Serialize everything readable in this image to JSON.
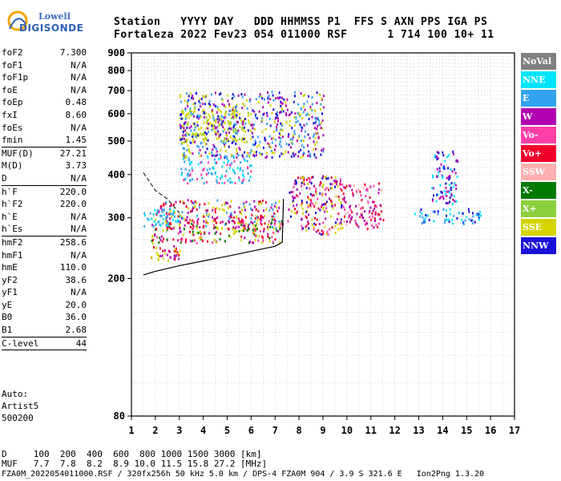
{
  "logo": {
    "line1": "Lowell",
    "line2": "DIGISONDE"
  },
  "header": {
    "line1": "Station   YYYY DAY   DDD HHMMSS P1  FFS S AXN PPS IGA PS",
    "line2": "Fortaleza 2022 Fev23 054 011000 RSF      1 714 100 10+ 11"
  },
  "params": [
    {
      "name": "foF2",
      "value": "7.300"
    },
    {
      "name": "foF1",
      "value": "N/A"
    },
    {
      "name": "foF1p",
      "value": "N/A"
    },
    {
      "name": "foE",
      "value": "N/A"
    },
    {
      "name": "foEp",
      "value": "0.48"
    },
    {
      "name": "fxI",
      "value": "8.60"
    },
    {
      "name": "foEs",
      "value": "N/A"
    },
    {
      "name": "fmin",
      "value": "1.45",
      "sep": true
    },
    {
      "name": "MUF(D)",
      "value": "27.21"
    },
    {
      "name": "M(D)",
      "value": "3.73"
    },
    {
      "name": "D",
      "value": "N/A",
      "sep": true
    },
    {
      "name": "h`F",
      "value": "220.0"
    },
    {
      "name": "h`F2",
      "value": "220.0"
    },
    {
      "name": "h`E",
      "value": "N/A"
    },
    {
      "name": "h`Es",
      "value": "N/A",
      "sep": true
    },
    {
      "name": "hmF2",
      "value": "258.6"
    },
    {
      "name": "hmF1",
      "value": "N/A"
    },
    {
      "name": "hmE",
      "value": "110.0"
    },
    {
      "name": "yF2",
      "value": "38.6"
    },
    {
      "name": "yF1",
      "value": "N/A"
    },
    {
      "name": "yE",
      "value": "20.0"
    },
    {
      "name": "B0",
      "value": "36.0"
    },
    {
      "name": "B1",
      "value": "2.68",
      "sep": true
    },
    {
      "name": "C-level",
      "value": "44",
      "sep": true
    }
  ],
  "auto": {
    "line1": "Auto:",
    "line2": "Artist5",
    "line3": "500200"
  },
  "legend": [
    {
      "label": "NoVal",
      "color": "#808080"
    },
    {
      "label": "NNE",
      "color": "#00e5ff"
    },
    {
      "label": "E",
      "color": "#33a3f0"
    },
    {
      "label": "W",
      "color": "#b000b0"
    },
    {
      "label": "Vo-",
      "color": "#ff3fa8"
    },
    {
      "label": "Vo+",
      "color": "#f0002c"
    },
    {
      "label": "SSW",
      "color": "#ffb0b0"
    },
    {
      "label": "X-",
      "color": "#007a00"
    },
    {
      "label": "X+",
      "color": "#8ccf3c"
    },
    {
      "label": "SSE",
      "color": "#d4d400"
    },
    {
      "label": "NNW",
      "color": "#1a10d8"
    }
  ],
  "chart_data": {
    "type": "scatter",
    "x_ticks": [
      "1",
      "2",
      "3",
      "4",
      "5",
      "6",
      "7",
      "8",
      "9",
      "10",
      "11",
      "12",
      "13",
      "14",
      "15",
      "16",
      "17"
    ],
    "y_ticks": [
      "80",
      "200",
      "300",
      "400",
      "500",
      "600",
      "700",
      "800",
      "900"
    ],
    "xlim": [
      1,
      17
    ],
    "y_scale": "log",
    "ylim": [
      80,
      900
    ],
    "trace_solid": {
      "x": [
        1.5,
        2.0,
        3.0,
        4.0,
        5.0,
        6.0,
        7.0,
        7.3,
        7.35
      ],
      "y": [
        205,
        210,
        218,
        225,
        232,
        240,
        248,
        255,
        340
      ]
    },
    "trace_dashed": {
      "x": [
        1.5,
        2.0,
        2.5,
        3.0
      ],
      "y": [
        405,
        360,
        340,
        310
      ]
    },
    "clusters": [
      {
        "x": [
          1.8,
          3.0
        ],
        "y": [
          225,
          250
        ],
        "colors": [
          "#f0002c",
          "#b000b0",
          "#d4d400"
        ]
      },
      {
        "x": [
          1.8,
          7.3
        ],
        "y": [
          255,
          300
        ],
        "colors": [
          "#f0002c",
          "#b000b0",
          "#d4d400",
          "#ff3fa8",
          "#007a00"
        ]
      },
      {
        "x": [
          2.0,
          7.3
        ],
        "y": [
          280,
          340
        ],
        "colors": [
          "#f0002c",
          "#33a3f0",
          "#d4d400",
          "#b000b0"
        ]
      },
      {
        "x": [
          1.5,
          3.0
        ],
        "y": [
          285,
          320
        ],
        "colors": [
          "#33a3f0",
          "#00e5ff"
        ]
      },
      {
        "x": [
          3.0,
          6.0
        ],
        "y": [
          380,
          460
        ],
        "colors": [
          "#33a3f0",
          "#00e5ff",
          "#ff3fa8"
        ]
      },
      {
        "x": [
          3.0,
          6.0
        ],
        "y": [
          500,
          620
        ],
        "colors": [
          "#d4d400",
          "#d4d400",
          "#8ccf3c"
        ]
      },
      {
        "x": [
          7.5,
          9.8
        ],
        "y": [
          270,
          400
        ],
        "colors": [
          "#f0002c",
          "#b000b0",
          "#d4d400",
          "#ff3fa8",
          "#1a10d8"
        ]
      },
      {
        "x": [
          9.8,
          11.5
        ],
        "y": [
          280,
          380
        ],
        "colors": [
          "#f0002c",
          "#ff3fa8",
          "#ffb0b0",
          "#b000b0"
        ]
      },
      {
        "x": [
          12.8,
          15.6
        ],
        "y": [
          290,
          320
        ],
        "colors": [
          "#33a3f0",
          "#1a10d8",
          "#00e5ff"
        ]
      },
      {
        "x": [
          13.5,
          14.6
        ],
        "y": [
          330,
          470
        ],
        "colors": [
          "#1a10d8",
          "#00e5ff",
          "#b000b0"
        ]
      },
      {
        "x": [
          3.0,
          9.0
        ],
        "y": [
          450,
          700
        ],
        "colors": [
          "#33a3f0",
          "#1a10d8",
          "#d4d400",
          "#b000b0"
        ]
      }
    ]
  },
  "bottom": {
    "line1": "D     100  200  400  600  800 1000 1500 3000 [km]",
    "line2": "MUF   7.7  7.8  8.2  8.9 10.0 11.5 15.8 27.2 [MHz]",
    "line3": "FZA0M_2022054011000.RSF / 320fx256h 50 kHz 5.0 km / DPS-4 FZA0M 904 / 3.9 S 321.6 E   Ion2Png 1.3.20"
  }
}
